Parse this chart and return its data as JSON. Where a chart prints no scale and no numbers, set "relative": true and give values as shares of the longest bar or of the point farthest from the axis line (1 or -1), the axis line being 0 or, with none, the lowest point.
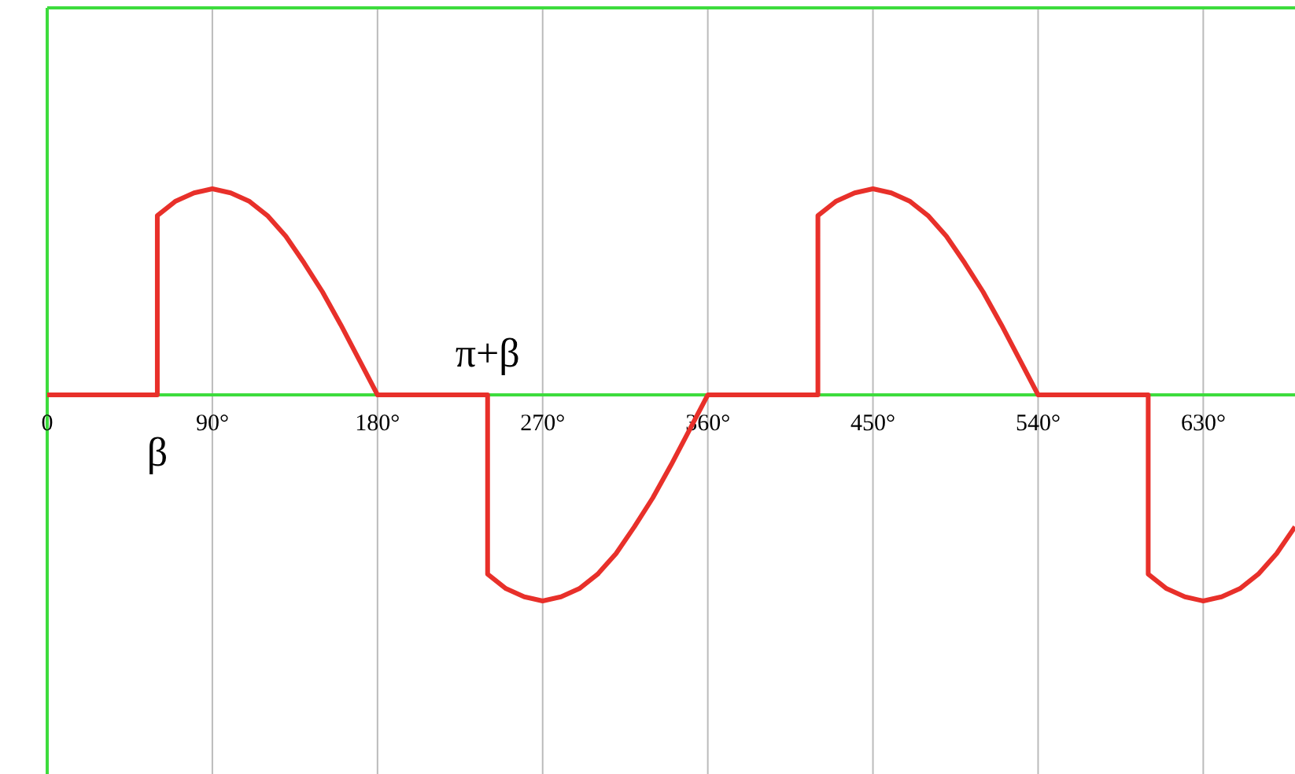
{
  "chart_data": {
    "type": "line",
    "relative": true,
    "x": [
      0,
      60,
      60,
      70,
      80,
      90,
      100,
      110,
      120,
      130,
      140,
      150,
      160,
      170,
      180,
      240,
      240,
      250,
      260,
      270,
      280,
      290,
      300,
      310,
      320,
      330,
      340,
      350,
      360,
      420,
      420,
      430,
      440,
      450,
      460,
      470,
      480,
      490,
      500,
      510,
      520,
      530,
      540,
      600,
      600,
      610,
      620,
      630,
      640,
      650,
      660,
      670,
      680
    ],
    "series": [
      {
        "color": "#e8302a",
        "values": [
          0,
          0,
          0.87,
          0.94,
          0.98,
          1,
          0.98,
          0.94,
          0.87,
          0.77,
          0.64,
          0.5,
          0.34,
          0.17,
          0,
          0,
          -0.87,
          -0.94,
          -0.98,
          -1,
          -0.98,
          -0.94,
          -0.87,
          -0.77,
          -0.64,
          -0.5,
          -0.34,
          -0.17,
          0,
          0,
          0.87,
          0.94,
          0.98,
          1,
          0.98,
          0.94,
          0.87,
          0.77,
          0.64,
          0.5,
          0.34,
          0.17,
          0,
          0,
          -0.87,
          -0.94,
          -0.98,
          -1,
          -0.98,
          -0.94,
          -0.87,
          -0.77,
          -0.64
        ]
      }
    ],
    "xlim": [
      0,
      680
    ],
    "xticks": [
      0,
      {
        "value": 90,
        "label": "90°"
      },
      {
        "value": 180,
        "label": "180°"
      },
      {
        "value": 270,
        "label": "270°"
      },
      {
        "value": 360,
        "label": "360°"
      },
      {
        "value": 450,
        "label": "450°"
      },
      {
        "value": 540,
        "label": "540°"
      },
      {
        "value": 630,
        "label": "630°"
      }
    ],
    "grid": "x",
    "marker": "none",
    "line_style": "solid",
    "annotations": [
      {
        "text": "β",
        "x": 60,
        "y": 0
      },
      {
        "text": "π+β",
        "x": 240,
        "y": 0
      }
    ]
  }
}
